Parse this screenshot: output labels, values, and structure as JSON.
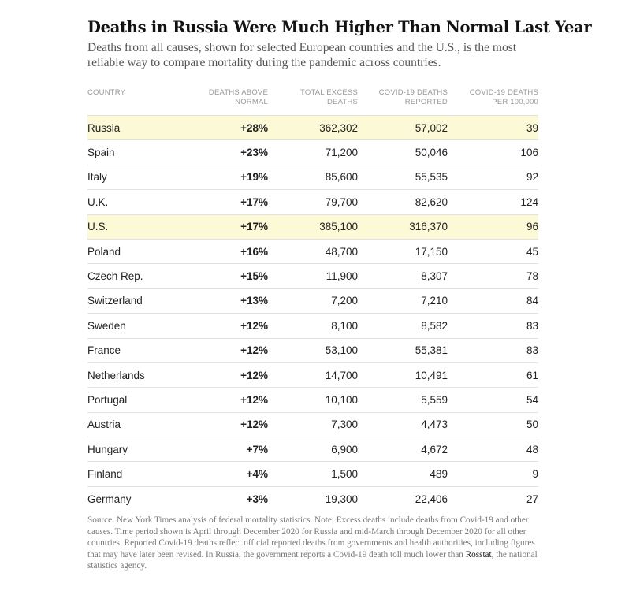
{
  "chart_data": {
    "type": "table",
    "title": "Deaths in Russia Were Much Higher Than Normal Last Year",
    "subtitle": "Deaths from all causes, shown for selected European countries and the U.S., is the most reliable way to compare mortality during the pandemic across countries.",
    "columns": [
      [
        "COUNTRY"
      ],
      [
        "DEATHS ABOVE",
        "NORMAL"
      ],
      [
        "TOTAL EXCESS",
        "DEATHS"
      ],
      [
        "COVID-19 DEATHS",
        "REPORTED"
      ],
      [
        "COVID-19 DEATHS",
        "PER 100,000"
      ]
    ],
    "rows": [
      {
        "country": "Russia",
        "above": "+28%",
        "excess": "362,302",
        "reported": "57,002",
        "per100k": "39",
        "highlight": true
      },
      {
        "country": "Spain",
        "above": "+23%",
        "excess": "71,200",
        "reported": "50,046",
        "per100k": "106",
        "highlight": false
      },
      {
        "country": "Italy",
        "above": "+19%",
        "excess": "85,600",
        "reported": "55,535",
        "per100k": "92",
        "highlight": false
      },
      {
        "country": "U.K.",
        "above": "+17%",
        "excess": "79,700",
        "reported": "82,620",
        "per100k": "124",
        "highlight": false
      },
      {
        "country": "U.S.",
        "above": "+17%",
        "excess": "385,100",
        "reported": "316,370",
        "per100k": "96",
        "highlight": true
      },
      {
        "country": "Poland",
        "above": "+16%",
        "excess": "48,700",
        "reported": "17,150",
        "per100k": "45",
        "highlight": false
      },
      {
        "country": "Czech Rep.",
        "above": "+15%",
        "excess": "11,900",
        "reported": "8,307",
        "per100k": "78",
        "highlight": false
      },
      {
        "country": "Switzerland",
        "above": "+13%",
        "excess": "7,200",
        "reported": "7,210",
        "per100k": "84",
        "highlight": false
      },
      {
        "country": "Sweden",
        "above": "+12%",
        "excess": "8,100",
        "reported": "8,582",
        "per100k": "83",
        "highlight": false
      },
      {
        "country": "France",
        "above": "+12%",
        "excess": "53,100",
        "reported": "55,381",
        "per100k": "83",
        "highlight": false
      },
      {
        "country": "Netherlands",
        "above": "+12%",
        "excess": "14,700",
        "reported": "10,491",
        "per100k": "61",
        "highlight": false
      },
      {
        "country": "Portugal",
        "above": "+12%",
        "excess": "10,100",
        "reported": "5,559",
        "per100k": "54",
        "highlight": false
      },
      {
        "country": "Austria",
        "above": "+12%",
        "excess": "7,300",
        "reported": "4,473",
        "per100k": "50",
        "highlight": false
      },
      {
        "country": "Hungary",
        "above": "+7%",
        "excess": "6,900",
        "reported": "4,672",
        "per100k": "48",
        "highlight": false
      },
      {
        "country": "Finland",
        "above": "+4%",
        "excess": "1,500",
        "reported": "489",
        "per100k": "9",
        "highlight": false
      },
      {
        "country": "Germany",
        "above": "+3%",
        "excess": "19,300",
        "reported": "22,406",
        "per100k": "27",
        "highlight": false
      }
    ],
    "highlight_color": "#fbf9d6",
    "source_before_link": "Source: New York Times analysis of federal mortality statistics. Note: Excess deaths include deaths from Covid-19 and other causes. Time period shown is April through December 2020 for Russia and mid-March through December 2020 for all other countries. Reported Covid-19 deaths reflect official reported deaths from governments and health authorities, including figures that may have later been revised. In Russia, the government reports a Covid-19 death toll much lower than ",
    "source_link": "Rosstat",
    "source_after_link": ", the national statistics agency."
  }
}
